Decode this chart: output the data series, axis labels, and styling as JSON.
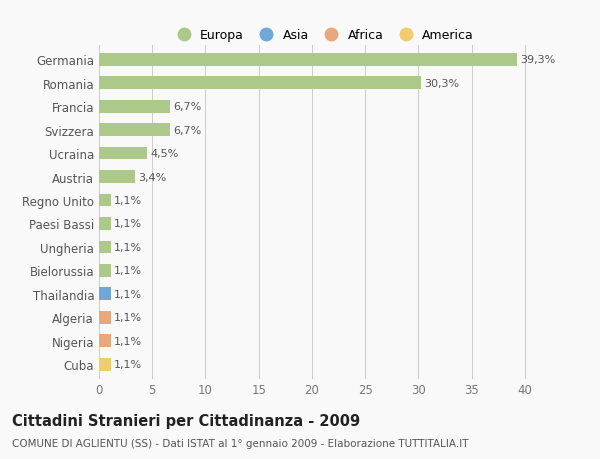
{
  "categories": [
    "Germania",
    "Romania",
    "Francia",
    "Svizzera",
    "Ucraina",
    "Austria",
    "Regno Unito",
    "Paesi Bassi",
    "Ungheria",
    "Bielorussia",
    "Thailandia",
    "Algeria",
    "Nigeria",
    "Cuba"
  ],
  "values": [
    39.3,
    30.3,
    6.7,
    6.7,
    4.5,
    3.4,
    1.1,
    1.1,
    1.1,
    1.1,
    1.1,
    1.1,
    1.1,
    1.1
  ],
  "labels": [
    "39,3%",
    "30,3%",
    "6,7%",
    "6,7%",
    "4,5%",
    "3,4%",
    "1,1%",
    "1,1%",
    "1,1%",
    "1,1%",
    "1,1%",
    "1,1%",
    "1,1%",
    "1,1%"
  ],
  "continents": [
    "Europa",
    "Europa",
    "Europa",
    "Europa",
    "Europa",
    "Europa",
    "Europa",
    "Europa",
    "Europa",
    "Europa",
    "Asia",
    "Africa",
    "Africa",
    "America"
  ],
  "continent_colors": {
    "Europa": "#adc98a",
    "Asia": "#6fa8d6",
    "Africa": "#e8a87c",
    "America": "#f0cc6e"
  },
  "legend_items": [
    "Europa",
    "Asia",
    "Africa",
    "America"
  ],
  "legend_colors": [
    "#adc98a",
    "#6fa8d6",
    "#e8a87c",
    "#f0cc6e"
  ],
  "xlim": [
    0,
    42
  ],
  "xticks": [
    0,
    5,
    10,
    15,
    20,
    25,
    30,
    35,
    40
  ],
  "title": "Cittadini Stranieri per Cittadinanza - 2009",
  "subtitle": "COMUNE DI AGLIENTU (SS) - Dati ISTAT al 1° gennaio 2009 - Elaborazione TUTTITALIA.IT",
  "background_color": "#f9f9f9",
  "grid_color": "#cccccc",
  "bar_height": 0.55,
  "label_fontsize": 8,
  "ytick_fontsize": 8.5,
  "xtick_fontsize": 8.5,
  "title_fontsize": 10.5,
  "subtitle_fontsize": 7.5
}
